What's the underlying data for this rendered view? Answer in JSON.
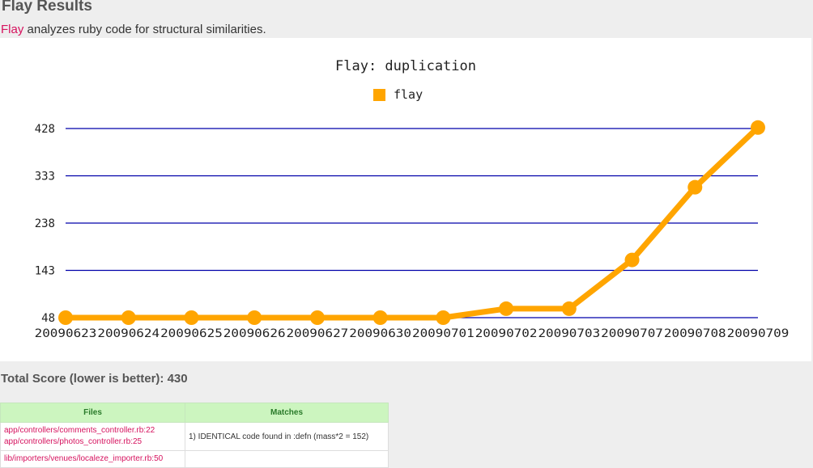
{
  "page": {
    "title": "Flay Results",
    "intro_link": "Flay",
    "intro_text": " analyzes ruby code for structural similarities.",
    "total_score_text": "Total Score (lower is better): 430"
  },
  "colors": {
    "series": "#ffa500",
    "grid": "#0000aa",
    "link": "#d6125e"
  },
  "chart_data": {
    "type": "line",
    "title": "Flay: duplication",
    "legend": {
      "position": "top-center",
      "entries": [
        "flay"
      ]
    },
    "grid": true,
    "categories": [
      "20090623",
      "20090624",
      "20090625",
      "20090626",
      "20090627",
      "20090630",
      "20090701",
      "20090702",
      "20090703",
      "20090707",
      "20090708",
      "20090709"
    ],
    "y_ticks": [
      48,
      143,
      238,
      333,
      428
    ],
    "ylim": [
      48,
      428
    ],
    "series": [
      {
        "name": "flay",
        "values": [
          48,
          48,
          48,
          48,
          48,
          48,
          48,
          66,
          66,
          164,
          310,
          430
        ]
      }
    ]
  },
  "table": {
    "headers": [
      "Files",
      "Matches"
    ],
    "rows": [
      {
        "files": [
          "app/controllers/comments_controller.rb:22",
          "app/controllers/photos_controller.rb:25"
        ],
        "match": "1) IDENTICAL code found in :defn (mass*2 = 152)"
      },
      {
        "files": [
          "lib/importers/venues/localeze_importer.rb:50"
        ],
        "match": ""
      }
    ]
  }
}
